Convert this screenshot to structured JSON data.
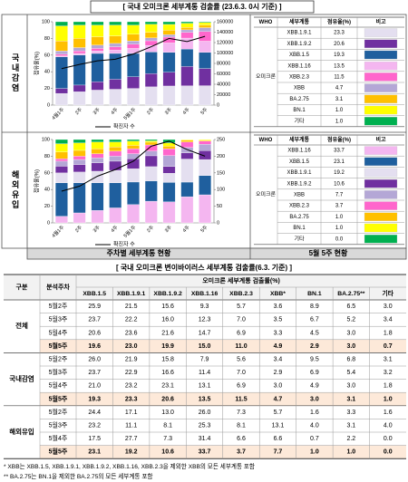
{
  "header": {
    "title": "[ 국내 오미크론 세부계통 검출률 (23.6.3. 0시 기준) ]"
  },
  "side_labels": [
    "국내감염",
    "해외유입"
  ],
  "chart_data": [
    {
      "type": "bar",
      "stacked": true,
      "ylabel": "점유율(%)",
      "categories": [
        "4월1주",
        "2주",
        "3주",
        "4주",
        "5월1주",
        "2주",
        "3주",
        "4주",
        "5주"
      ],
      "ylim": [
        0,
        100
      ],
      "yticks": [
        0,
        20,
        40,
        60,
        80,
        100
      ],
      "y2lim": [
        0,
        160000
      ],
      "y2ticks": [
        0,
        20000,
        40000,
        60000,
        80000,
        100000,
        120000,
        140000,
        160000
      ],
      "series": [
        {
          "name": "XBB.1.9.1",
          "color": "#e4dff0",
          "values": [
            14,
            16,
            18,
            19,
            20,
            21.9,
            22.9,
            23.2,
            23.3
          ]
        },
        {
          "name": "XBB.1.9.2",
          "color": "#7030a0",
          "values": [
            6,
            8,
            10,
            12,
            14,
            15.8,
            16.6,
            23.1,
            20.6
          ]
        },
        {
          "name": "XBB.1.5",
          "color": "#1f5f9e",
          "values": [
            38,
            36,
            34,
            31,
            28,
            26.0,
            23.7,
            21.0,
            19.3
          ]
        },
        {
          "name": "XBB.1.16",
          "color": "#f4b6f0",
          "values": [
            1,
            2,
            3,
            4,
            6,
            7.9,
            11.4,
            13.1,
            13.5
          ]
        },
        {
          "name": "XBB.2.3",
          "color": "#ff66cc",
          "values": [
            2,
            3,
            3,
            4,
            5,
            5.6,
            7.0,
            6.9,
            11.5
          ]
        },
        {
          "name": "XBB",
          "color": "#b4a7d6",
          "values": [
            4,
            4,
            4,
            4,
            4,
            3.4,
            2.9,
            3.0,
            4.7
          ]
        },
        {
          "name": "BA.2.75",
          "color": "#ffc000",
          "values": [
            12,
            11,
            10,
            9,
            8,
            6.8,
            5.4,
            3.0,
            3.1
          ]
        },
        {
          "name": "BN.1",
          "color": "#ffff00",
          "values": [
            18,
            16,
            14,
            13,
            11,
            9.5,
            6.9,
            4.9,
            3.0
          ]
        },
        {
          "name": "기타",
          "color": "#00b050",
          "values": [
            5,
            4,
            4,
            4,
            4,
            3.1,
            3.2,
            1.8,
            1.0
          ]
        },
        {
          "name": "확진자 수",
          "type": "line",
          "axis": "y2",
          "color": "#000000",
          "values": [
            70000,
            78000,
            85000,
            88000,
            98000,
            112000,
            128000,
            122000,
            132000
          ]
        }
      ]
    },
    {
      "type": "bar",
      "stacked": true,
      "ylabel": "점유율(%)",
      "categories": [
        "4월1주",
        "2주",
        "3주",
        "4주",
        "5월1주",
        "2주",
        "3주",
        "4주",
        "5주"
      ],
      "ylim": [
        0,
        100
      ],
      "yticks": [
        0,
        20,
        40,
        60,
        80,
        100
      ],
      "y2lim": [
        0,
        250
      ],
      "y2ticks": [
        0,
        50,
        100,
        150,
        200,
        250
      ],
      "series": [
        {
          "name": "XBB.1.16",
          "color": "#f4b6f0",
          "values": [
            8,
            12,
            15,
            18,
            22,
            26.0,
            25.3,
            31.4,
            33.7
          ]
        },
        {
          "name": "XBB.1.5",
          "color": "#1f5f9e",
          "values": [
            40,
            36,
            33,
            30,
            27,
            24.4,
            23.2,
            17.5,
            23.1
          ]
        },
        {
          "name": "XBB.1.9.1",
          "color": "#e4dff0",
          "values": [
            12,
            13,
            14,
            15,
            16,
            17.1,
            11.1,
            27.7,
            19.2
          ]
        },
        {
          "name": "XBB.1.9.2",
          "color": "#7030a0",
          "values": [
            8,
            9,
            10,
            11,
            12,
            13.0,
            8.1,
            7.3,
            10.6
          ]
        },
        {
          "name": "XBB",
          "color": "#b4a7d6",
          "values": [
            6,
            6,
            6,
            6,
            6,
            5.7,
            13.1,
            6.6,
            7.7
          ]
        },
        {
          "name": "XBB.2.3",
          "color": "#ff66cc",
          "values": [
            3,
            4,
            5,
            6,
            6,
            7.3,
            8.1,
            6.6,
            3.7
          ]
        },
        {
          "name": "BA.2.75",
          "color": "#ffc000",
          "values": [
            8,
            7,
            6,
            5,
            4,
            3.3,
            3.1,
            2.2,
            1.0
          ]
        },
        {
          "name": "BN.1",
          "color": "#ffff00",
          "values": [
            10,
            9,
            8,
            6,
            5,
            1.6,
            4.0,
            0.7,
            1.0
          ]
        },
        {
          "name": "기타",
          "color": "#00b050",
          "values": [
            5,
            4,
            3,
            3,
            2,
            1.6,
            4.0,
            0.0,
            0.0
          ]
        },
        {
          "name": "확진자 수",
          "type": "line",
          "axis": "y2",
          "color": "#000000",
          "values": [
            95,
            110,
            140,
            160,
            185,
            230,
            245,
            220,
            200
          ]
        }
      ]
    }
  ],
  "share_tables": [
    {
      "columns": [
        "WHO",
        "세부계통",
        "점유율(%)",
        "비고"
      ],
      "who": "오미크론",
      "shares": [
        "23.3",
        "20.6",
        "19.3",
        "13.5",
        "11.5",
        "4.7",
        "3.1",
        "1.0",
        "1.0"
      ]
    },
    {
      "columns": [
        "WHO",
        "세부계통",
        "점유율(%)",
        "비고"
      ],
      "who": "오미크론",
      "shares": [
        "33.7",
        "23.1",
        "19.2",
        "10.6",
        "7.7",
        "3.7",
        "1.0",
        "1.0",
        "0.0"
      ]
    }
  ],
  "footer": {
    "left": "주차별 세부계통 현황",
    "right": "5월 5주 현황"
  },
  "table": {
    "title": "[ 국내 오미크론 변이바이러스 세부계통 검출률(6.3. 기준) ]",
    "group_header": "구분",
    "week_header": "분석주차",
    "span_header": "오미크론 세부계통 검출률(%)",
    "columns": [
      "XBB.1.5",
      "XBB.1.9.1",
      "XBB.1.9.2",
      "XBB.1.16",
      "XBB.2.3",
      "XBB*",
      "BN.1",
      "BA.2.75**",
      "기타"
    ],
    "groups": [
      {
        "name": "전체",
        "rows": [
          {
            "week": "5월2주",
            "values": [
              "25.9",
              "21.5",
              "15.6",
              "9.3",
              "5.7",
              "3.6",
              "8.9",
              "6.5",
              "3.0"
            ]
          },
          {
            "week": "5월3주",
            "values": [
              "23.7",
              "22.2",
              "16.0",
              "12.3",
              "7.0",
              "3.5",
              "6.7",
              "5.2",
              "3.4"
            ]
          },
          {
            "week": "5월4주",
            "values": [
              "20.6",
              "23.6",
              "21.6",
              "14.7",
              "6.9",
              "3.3",
              "4.5",
              "3.0",
              "1.8"
            ]
          },
          {
            "week": "5월5주",
            "values": [
              "19.6",
              "23.0",
              "19.9",
              "15.0",
              "11.0",
              "4.9",
              "2.9",
              "3.0",
              "0.7"
            ]
          }
        ]
      },
      {
        "name": "국내감염",
        "rows": [
          {
            "week": "5월2주",
            "values": [
              "26.0",
              "21.9",
              "15.8",
              "7.9",
              "5.6",
              "3.4",
              "9.5",
              "6.8",
              "3.1"
            ]
          },
          {
            "week": "5월3주",
            "values": [
              "23.7",
              "22.9",
              "16.6",
              "11.4",
              "7.0",
              "2.9",
              "6.9",
              "5.4",
              "3.2"
            ]
          },
          {
            "week": "5월4주",
            "values": [
              "21.0",
              "23.2",
              "23.1",
              "13.1",
              "6.9",
              "3.0",
              "4.9",
              "3.0",
              "1.8"
            ]
          },
          {
            "week": "5월5주",
            "values": [
              "19.3",
              "23.3",
              "20.6",
              "13.5",
              "11.5",
              "4.7",
              "3.0",
              "3.1",
              "1.0"
            ]
          }
        ]
      },
      {
        "name": "해외유입",
        "rows": [
          {
            "week": "5월2주",
            "values": [
              "24.4",
              "17.1",
              "13.0",
              "26.0",
              "7.3",
              "5.7",
              "1.6",
              "3.3",
              "1.6"
            ]
          },
          {
            "week": "5월3주",
            "values": [
              "23.2",
              "11.1",
              "8.1",
              "25.3",
              "8.1",
              "13.1",
              "4.0",
              "3.1",
              "4.0"
            ]
          },
          {
            "week": "5월4주",
            "values": [
              "17.5",
              "27.7",
              "7.3",
              "31.4",
              "6.6",
              "6.6",
              "0.7",
              "2.2",
              "0.0"
            ]
          },
          {
            "week": "5월5주",
            "values": [
              "23.1",
              "19.2",
              "10.6",
              "33.7",
              "3.7",
              "7.7",
              "1.0",
              "1.0",
              "0.0"
            ]
          }
        ]
      }
    ]
  },
  "notes": [
    "* XBB는 XBB.1.5, XBB.1.9.1, XBB.1.9.2, XBB.1.16, XBB.2.3을 제외한 XBB의 모든 세부계통 포함",
    "** BA.2.75는 BN.1을 제외한 BA.2.75의 모든 세부계통 포함"
  ]
}
